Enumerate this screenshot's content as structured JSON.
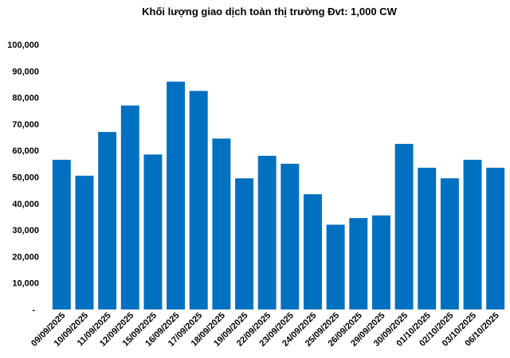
{
  "chart_data": {
    "type": "bar",
    "title": "Khối lượng giao dịch toàn thị trường Đvt: 1,000 CW",
    "xlabel": "",
    "ylabel": "",
    "ylim": [
      0,
      100000
    ],
    "y_tick_labels": [
      "-",
      "10,000",
      "20,000",
      "30,000",
      "40,000",
      "50,000",
      "60,000",
      "70,000",
      "80,000",
      "90,000",
      "100,000"
    ],
    "grid": false,
    "legend": "none",
    "bar_color": "#0070C0",
    "categories": [
      "09/09/2025",
      "10/09/2025",
      "11/09/2025",
      "12/09/2025",
      "15/09/2025",
      "16/09/2025",
      "17/09/2025",
      "18/09/2025",
      "19/09/2025",
      "22/09/2025",
      "23/09/2025",
      "24/09/2025",
      "25/09/2025",
      "26/09/2025",
      "29/09/2025",
      "30/09/2025",
      "01/10/2025",
      "02/10/2025",
      "03/10/2025",
      "06/10/2025"
    ],
    "values": [
      56500,
      50500,
      67000,
      77000,
      58500,
      86000,
      82500,
      64500,
      49500,
      58000,
      55000,
      43500,
      32000,
      34500,
      35500,
      62500,
      53500,
      49500,
      56500,
      53500
    ]
  }
}
